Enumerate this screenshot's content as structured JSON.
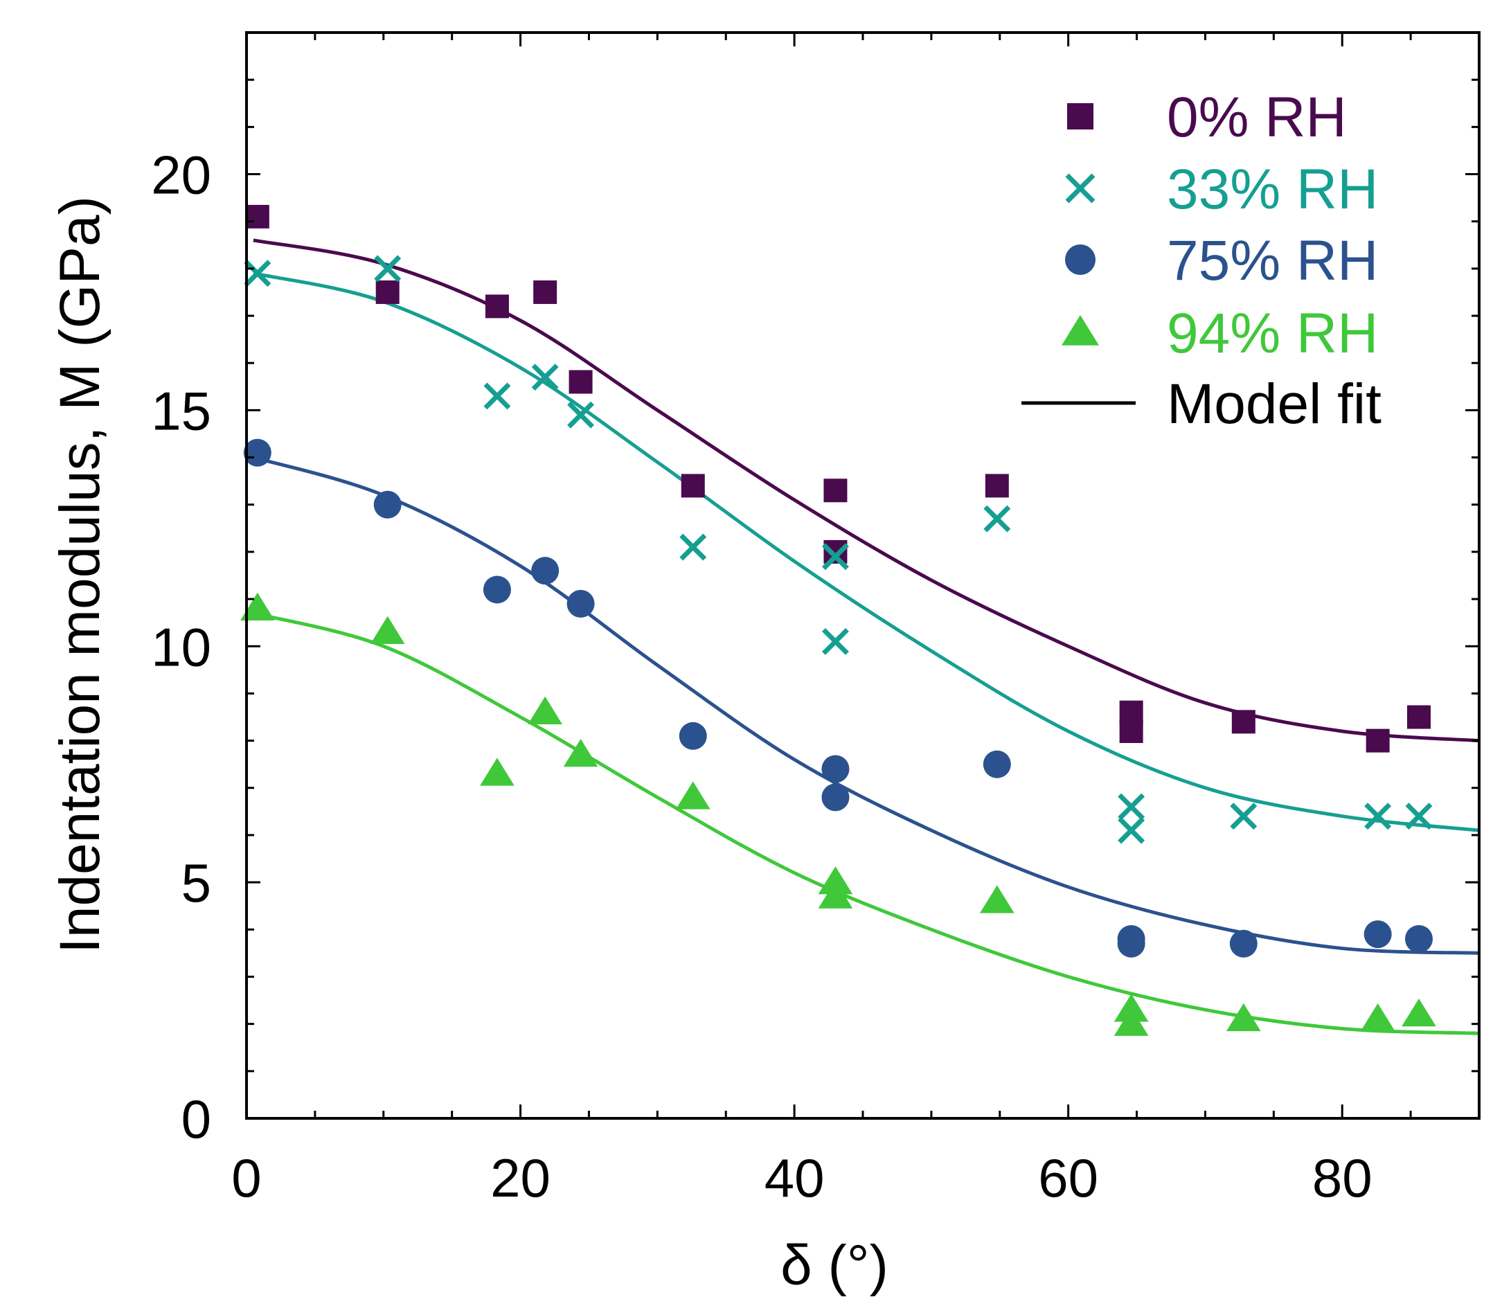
{
  "chart_data": {
    "type": "scatter",
    "title": "",
    "xlabel": "δ (°)",
    "ylabel": "Indentation modulus, M (GPa)",
    "xlim": [
      0,
      90
    ],
    "ylim": [
      0,
      23
    ],
    "xticks": [
      0,
      20,
      40,
      60,
      80
    ],
    "yticks": [
      0,
      5,
      10,
      15,
      20
    ],
    "grid": false,
    "legend_position": "top-right",
    "series": [
      {
        "name": "0% RH",
        "marker": "square",
        "color": "#4a0a4e",
        "points": [
          [
            0.8,
            19.1
          ],
          [
            10.3,
            17.5
          ],
          [
            18.3,
            17.2
          ],
          [
            21.8,
            17.5
          ],
          [
            24.4,
            15.6
          ],
          [
            32.6,
            13.4
          ],
          [
            43.0,
            13.3
          ],
          [
            43.0,
            12.0
          ],
          [
            54.8,
            13.4
          ],
          [
            64.6,
            8.6
          ],
          [
            64.6,
            8.2
          ],
          [
            72.8,
            8.4
          ],
          [
            82.6,
            8.0
          ],
          [
            85.6,
            8.5
          ]
        ],
        "fit": [
          [
            0.5,
            18.6
          ],
          [
            10,
            18.1
          ],
          [
            20,
            16.9
          ],
          [
            30,
            15.0
          ],
          [
            40,
            13.1
          ],
          [
            50,
            11.4
          ],
          [
            60,
            10.0
          ],
          [
            70,
            8.8
          ],
          [
            80,
            8.2
          ],
          [
            90,
            8.0
          ]
        ]
      },
      {
        "name": "33% RH",
        "marker": "x",
        "color": "#159f92",
        "points": [
          [
            0.8,
            17.9
          ],
          [
            10.3,
            18.0
          ],
          [
            18.3,
            15.3
          ],
          [
            21.8,
            15.7
          ],
          [
            24.4,
            14.9
          ],
          [
            32.6,
            12.1
          ],
          [
            43.0,
            11.9
          ],
          [
            43.0,
            10.1
          ],
          [
            54.8,
            12.7
          ],
          [
            64.6,
            6.6
          ],
          [
            64.6,
            6.1
          ],
          [
            72.8,
            6.4
          ],
          [
            82.6,
            6.4
          ],
          [
            85.6,
            6.4
          ]
        ],
        "fit": [
          [
            0.5,
            17.9
          ],
          [
            10,
            17.3
          ],
          [
            20,
            15.9
          ],
          [
            30,
            13.9
          ],
          [
            40,
            11.8
          ],
          [
            50,
            9.9
          ],
          [
            60,
            8.2
          ],
          [
            70,
            7.0
          ],
          [
            80,
            6.4
          ],
          [
            90,
            6.1
          ]
        ]
      },
      {
        "name": "75% RH",
        "marker": "circle",
        "color": "#2b528e",
        "points": [
          [
            0.8,
            14.1
          ],
          [
            10.3,
            13.0
          ],
          [
            18.3,
            11.2
          ],
          [
            21.8,
            11.6
          ],
          [
            24.4,
            10.9
          ],
          [
            32.6,
            8.1
          ],
          [
            43.0,
            7.4
          ],
          [
            43.0,
            6.8
          ],
          [
            54.8,
            7.5
          ],
          [
            64.6,
            3.8
          ],
          [
            64.6,
            3.7
          ],
          [
            72.8,
            3.7
          ],
          [
            82.6,
            3.9
          ],
          [
            85.6,
            3.8
          ]
        ],
        "fit": [
          [
            0.5,
            14.0
          ],
          [
            10,
            13.2
          ],
          [
            20,
            11.7
          ],
          [
            30,
            9.6
          ],
          [
            40,
            7.6
          ],
          [
            50,
            6.1
          ],
          [
            60,
            4.9
          ],
          [
            70,
            4.1
          ],
          [
            80,
            3.6
          ],
          [
            90,
            3.5
          ]
        ]
      },
      {
        "name": "94% RH",
        "marker": "triangle",
        "color": "#40c83a",
        "points": [
          [
            0.8,
            10.8
          ],
          [
            10.3,
            10.3
          ],
          [
            18.3,
            7.3
          ],
          [
            21.8,
            8.6
          ],
          [
            24.4,
            7.7
          ],
          [
            32.6,
            6.8
          ],
          [
            43.0,
            5.0
          ],
          [
            43.0,
            4.7
          ],
          [
            54.8,
            4.6
          ],
          [
            64.6,
            2.3
          ],
          [
            64.6,
            2.0
          ],
          [
            72.8,
            2.1
          ],
          [
            82.6,
            2.1
          ],
          [
            85.6,
            2.2
          ]
        ],
        "fit": [
          [
            0.5,
            10.7
          ],
          [
            10,
            10.0
          ],
          [
            20,
            8.5
          ],
          [
            30,
            6.8
          ],
          [
            40,
            5.2
          ],
          [
            50,
            4.0
          ],
          [
            60,
            3.0
          ],
          [
            70,
            2.3
          ],
          [
            80,
            1.9
          ],
          [
            90,
            1.8
          ]
        ]
      }
    ],
    "model_fit_label": "Model fit",
    "model_fit_color": "#000000"
  }
}
